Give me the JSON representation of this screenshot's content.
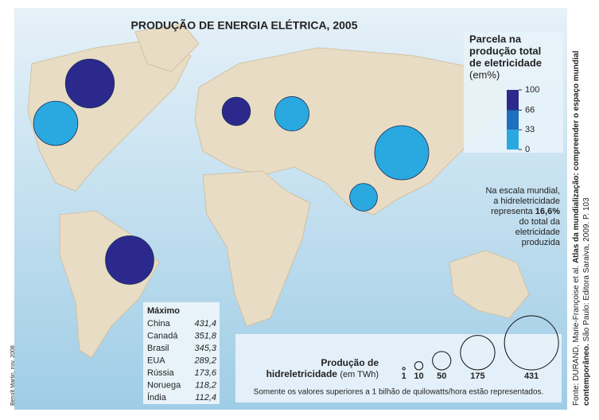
{
  "title": "PRODUÇÃO DE ENERGIA ELÉTRICA, 2005",
  "share_legend": {
    "title_lines": [
      "Parcela na",
      "produção total",
      "de eletricidade",
      "(em%)"
    ],
    "ticks": [
      100,
      66,
      33,
      0
    ],
    "colors": [
      "#2b2a8c",
      "#1e6fbf",
      "#2aa9e0"
    ]
  },
  "note": {
    "lines_before": [
      "Na escala mundial,",
      "a hidreletricidade"
    ],
    "emph_prefix": "representa",
    "emph": "16,6%",
    "lines_after": [
      "do total da",
      "eletricidade",
      "produzida"
    ]
  },
  "maximo": {
    "heading": "Máximo",
    "rows": [
      {
        "name": "China",
        "value": 431.4,
        "label": "431,4",
        "color": "#2aa9e0"
      },
      {
        "name": "Canadá",
        "value": 351.8,
        "label": "351,8",
        "color": "#2b2a8c"
      },
      {
        "name": "Brasil",
        "value": 345.3,
        "label": "345,3",
        "color": "#2b2a8c"
      },
      {
        "name": "EUA",
        "value": 289.2,
        "label": "289,2",
        "color": "#2aa9e0"
      },
      {
        "name": "Rússia",
        "value": 173.6,
        "label": "173,6",
        "color": "#2aa9e0"
      },
      {
        "name": "Noruega",
        "value": 118.2,
        "label": "118,2",
        "color": "#2b2a8c"
      },
      {
        "name": "Índia",
        "value": 112.4,
        "label": "112,4",
        "color": "#2aa9e0"
      }
    ]
  },
  "size_legend": {
    "title_line1": "Produção de",
    "title_bold": "hidreletricidade",
    "title_unit": "(em TWh)",
    "values": [
      1,
      10,
      50,
      175,
      431
    ]
  },
  "footnote": "Somente os valores superiores a 1 bilhão de quilowatts/hora estão representados.",
  "source": {
    "line1_plain": "Fonte: DURAND, Marie-Françoise et al. ",
    "line1_bold": "Atlas da mundialização: compreender o espaço mundial",
    "line2_bold": "contemporâneo.",
    "line2_plain": " São Paulo: Editora Saraiva, 2009. P. 103"
  },
  "credit": "Benoît Martin, nov. 2008"
}
